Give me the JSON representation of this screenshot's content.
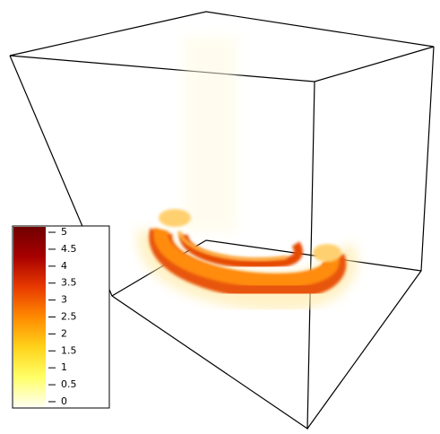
{
  "chart_data": {
    "type": "volume",
    "colorbar": {
      "clim": [
        -0.16,
        5.16
      ],
      "ticks": [
        0,
        0.5,
        1,
        1.5,
        2,
        2.5,
        3,
        3.5,
        4,
        4.5,
        5
      ],
      "colors": [
        "#fffff2",
        "#ffff66",
        "#ffd21a",
        "#ff8a00",
        "#e83a00",
        "#a80000",
        "#700000"
      ]
    }
  }
}
